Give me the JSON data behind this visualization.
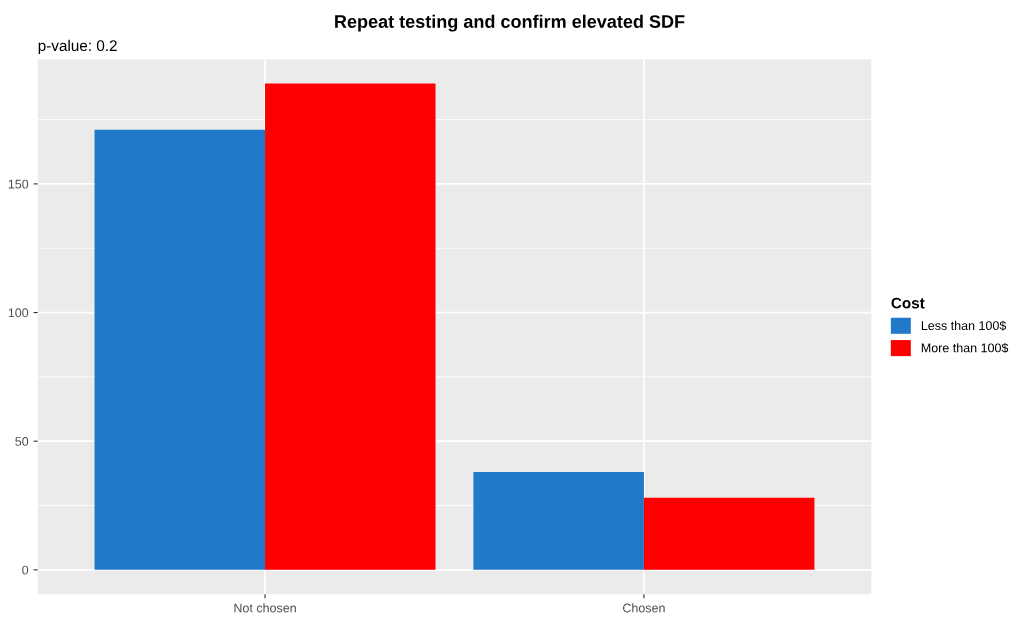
{
  "chart_data": {
    "type": "bar",
    "title": "Repeat testing and confirm elevated SDF",
    "subtitle": "p-value: 0.2",
    "categories": [
      "Not chosen",
      "Chosen"
    ],
    "series": [
      {
        "name": "Less than 100$",
        "color": "#2179c9",
        "values": [
          171,
          38
        ]
      },
      {
        "name": "More than 100$",
        "color": "#ff0000",
        "values": [
          189,
          28
        ]
      }
    ],
    "legend_title": "Cost",
    "legend": "right",
    "ylim": [
      -9.45,
      198.45
    ],
    "yticks": [
      0,
      50,
      100,
      150
    ],
    "grid": true
  }
}
